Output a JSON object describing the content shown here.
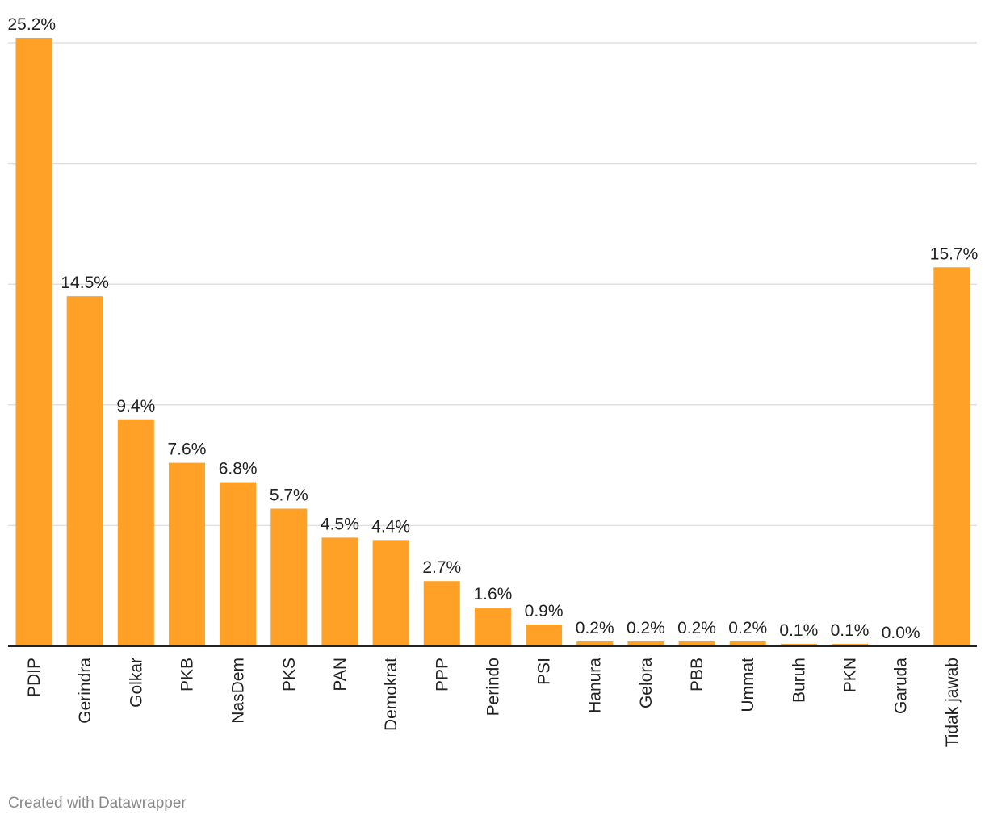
{
  "chart_data": {
    "type": "bar",
    "title": "",
    "xlabel": "",
    "ylabel": "",
    "ylim": [
      0,
      25
    ],
    "grid": true,
    "y_gridlines": [
      0,
      5,
      10,
      15,
      20,
      25
    ],
    "categories": [
      "PDIP",
      "Gerindra",
      "Golkar",
      "PKB",
      "NasDem",
      "PKS",
      "PAN",
      "Demokrat",
      "PPP",
      "Perindo",
      "PSI",
      "Hanura",
      "Gelora",
      "PBB",
      "Ummat",
      "Buruh",
      "PKN",
      "Garuda",
      "Tidak jawab"
    ],
    "values": [
      25.2,
      14.5,
      9.4,
      7.6,
      6.8,
      5.7,
      4.5,
      4.4,
      2.7,
      1.6,
      0.9,
      0.2,
      0.2,
      0.2,
      0.2,
      0.1,
      0.1,
      0.0,
      15.7
    ],
    "value_labels": [
      "25.2%",
      "14.5%",
      "9.4%",
      "7.6%",
      "6.8%",
      "5.7%",
      "4.5%",
      "4.4%",
      "2.7%",
      "1.6%",
      "0.9%",
      "0.2%",
      "0.2%",
      "0.2%",
      "0.2%",
      "0.1%",
      "0.1%",
      "0.0%",
      "15.7%"
    ],
    "bar_color": "#ffa126"
  },
  "credit": "Created with Datawrapper"
}
